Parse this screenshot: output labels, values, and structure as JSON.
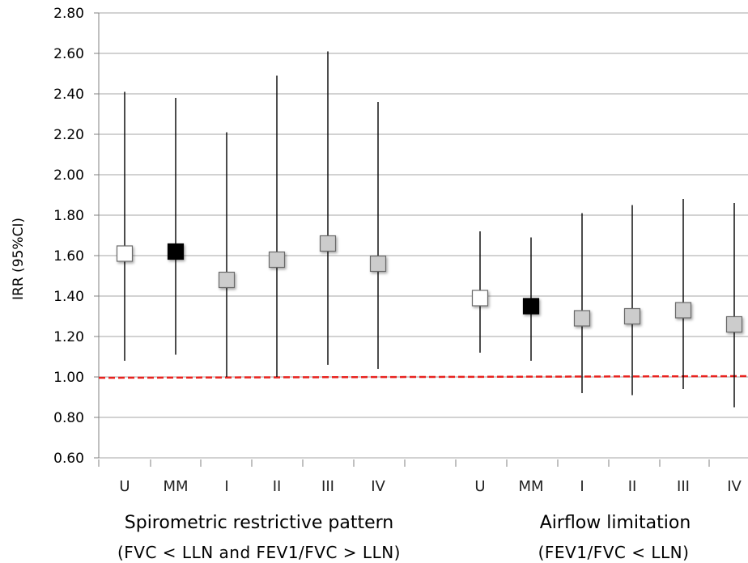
{
  "chart_data": {
    "type": "scatter",
    "ylabel": "IRR (95%CI)",
    "ylim": [
      0.6,
      2.8
    ],
    "yticks": [
      "0.60",
      "0.80",
      "1.00",
      "1.20",
      "1.40",
      "1.60",
      "1.80",
      "2.00",
      "2.20",
      "2.40",
      "2.60",
      "2.80"
    ],
    "grid": true,
    "reference_line": {
      "y": 1.0,
      "color": "#e8231f",
      "style": "dashed"
    },
    "groups": [
      {
        "title": "Spirometric restrictive pattern",
        "subtitle": "(FVC < LLN and FEV1/FVC > LLN)",
        "points": [
          {
            "label": "U",
            "estimate": 1.61,
            "lower": 1.08,
            "upper": 2.41,
            "fill": "#ffffff"
          },
          {
            "label": "MM",
            "estimate": 1.62,
            "lower": 1.11,
            "upper": 2.38,
            "fill": "#000000"
          },
          {
            "label": "I",
            "estimate": 1.48,
            "lower": 1.0,
            "upper": 2.21,
            "fill": "#cccccc"
          },
          {
            "label": "II",
            "estimate": 1.58,
            "lower": 1.0,
            "upper": 2.49,
            "fill": "#cccccc"
          },
          {
            "label": "III",
            "estimate": 1.66,
            "lower": 1.06,
            "upper": 2.61,
            "fill": "#cccccc"
          },
          {
            "label": "IV",
            "estimate": 1.56,
            "lower": 1.04,
            "upper": 2.36,
            "fill": "#cccccc"
          }
        ]
      },
      {
        "title": "Airflow limitation",
        "subtitle": "(FEV1/FVC < LLN)",
        "points": [
          {
            "label": "U",
            "estimate": 1.39,
            "lower": 1.12,
            "upper": 1.72,
            "fill": "#ffffff"
          },
          {
            "label": "MM",
            "estimate": 1.35,
            "lower": 1.08,
            "upper": 1.69,
            "fill": "#000000"
          },
          {
            "label": "I",
            "estimate": 1.29,
            "lower": 0.92,
            "upper": 1.81,
            "fill": "#cccccc"
          },
          {
            "label": "II",
            "estimate": 1.3,
            "lower": 0.91,
            "upper": 1.85,
            "fill": "#cccccc"
          },
          {
            "label": "III",
            "estimate": 1.33,
            "lower": 0.94,
            "upper": 1.88,
            "fill": "#cccccc"
          },
          {
            "label": "IV",
            "estimate": 1.26,
            "lower": 0.85,
            "upper": 1.86,
            "fill": "#cccccc"
          }
        ]
      }
    ]
  }
}
